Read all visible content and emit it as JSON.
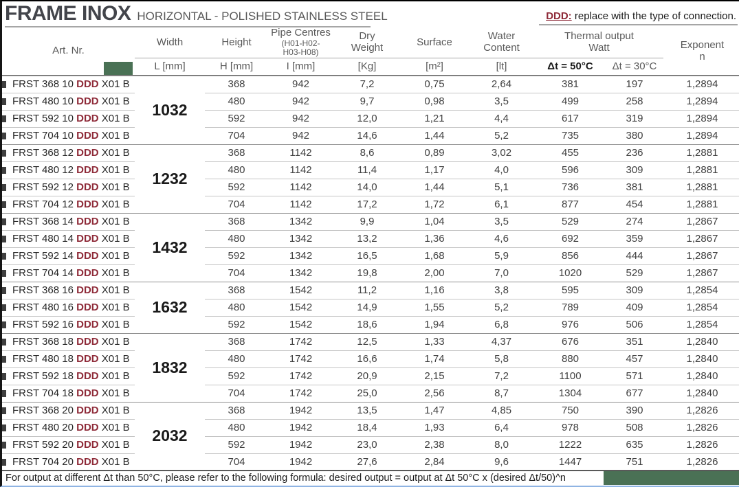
{
  "header": {
    "title": "FRAME INOX",
    "subtitle": "HORIZONTAL - POLISHED STAINLESS STEEL",
    "note_prefix": "DDD:",
    "note_text": " replace with the type of connection."
  },
  "colors": {
    "ddd_accent_red": "#8e2a38",
    "green_bar": "#4a7155",
    "title_gray": "#43454b"
  },
  "table": {
    "ddd_token": "DDD",
    "headers": {
      "art_nr": "Art. Nr.",
      "width": "Width",
      "height": "Height",
      "pipe": "Pipe Centres",
      "pipe_sub": "(H01-H02-H03-H08)",
      "dry_weight": "Dry Weight",
      "surface": "Surface",
      "water": "Water Content",
      "thermal": "Thermal output Watt",
      "exponent": "Exponent",
      "exponent_sub": "n"
    },
    "units": {
      "l": "L [mm]",
      "h": "H [mm]",
      "i": "I [mm]",
      "kg": "[Kg]",
      "m2": "[m²]",
      "lt": "[lt]",
      "dt50": "Δt = 50°C",
      "dt30": "Δt = 30°C"
    },
    "groups": [
      {
        "width_l": "1032",
        "rows": [
          {
            "art_prefix": "FRST 368 10",
            "art_suffix": "X01 B",
            "h": "368",
            "i": "942",
            "kg": "7,2",
            "m2": "0,75",
            "lt": "2,64",
            "w50": "381",
            "w30": "197",
            "n": "1,2894"
          },
          {
            "art_prefix": "FRST 480 10",
            "art_suffix": "X01 B",
            "h": "480",
            "i": "942",
            "kg": "9,7",
            "m2": "0,98",
            "lt": "3,5",
            "w50": "499",
            "w30": "258",
            "n": "1,2894"
          },
          {
            "art_prefix": "FRST 592 10",
            "art_suffix": "X01 B",
            "h": "592",
            "i": "942",
            "kg": "12,0",
            "m2": "1,21",
            "lt": "4,4",
            "w50": "617",
            "w30": "319",
            "n": "1,2894"
          },
          {
            "art_prefix": "FRST 704 10",
            "art_suffix": "X01 B",
            "h": "704",
            "i": "942",
            "kg": "14,6",
            "m2": "1,44",
            "lt": "5,2",
            "w50": "735",
            "w30": "380",
            "n": "1,2894"
          }
        ]
      },
      {
        "width_l": "1232",
        "rows": [
          {
            "art_prefix": "FRST 368 12",
            "art_suffix": "X01 B",
            "h": "368",
            "i": "1142",
            "kg": "8,6",
            "m2": "0,89",
            "lt": "3,02",
            "w50": "455",
            "w30": "236",
            "n": "1,2881"
          },
          {
            "art_prefix": "FRST 480 12",
            "art_suffix": "X01 B",
            "h": "480",
            "i": "1142",
            "kg": "11,4",
            "m2": "1,17",
            "lt": "4,0",
            "w50": "596",
            "w30": "309",
            "n": "1,2881"
          },
          {
            "art_prefix": "FRST 592 12",
            "art_suffix": "X01 B",
            "h": "592",
            "i": "1142",
            "kg": "14,0",
            "m2": "1,44",
            "lt": "5,1",
            "w50": "736",
            "w30": "381",
            "n": "1,2881"
          },
          {
            "art_prefix": "FRST 704 12",
            "art_suffix": "X01 B",
            "h": "704",
            "i": "1142",
            "kg": "17,2",
            "m2": "1,72",
            "lt": "6,1",
            "w50": "877",
            "w30": "454",
            "n": "1,2881"
          }
        ]
      },
      {
        "width_l": "1432",
        "rows": [
          {
            "art_prefix": "FRST 368 14",
            "art_suffix": "X01 B",
            "h": "368",
            "i": "1342",
            "kg": "9,9",
            "m2": "1,04",
            "lt": "3,5",
            "w50": "529",
            "w30": "274",
            "n": "1,2867"
          },
          {
            "art_prefix": "FRST 480 14",
            "art_suffix": "X01 B",
            "h": "480",
            "i": "1342",
            "kg": "13,2",
            "m2": "1,36",
            "lt": "4,6",
            "w50": "692",
            "w30": "359",
            "n": "1,2867"
          },
          {
            "art_prefix": "FRST 592 14",
            "art_suffix": "X01 B",
            "h": "592",
            "i": "1342",
            "kg": "16,5",
            "m2": "1,68",
            "lt": "5,9",
            "w50": "856",
            "w30": "444",
            "n": "1,2867"
          },
          {
            "art_prefix": "FRST 704 14",
            "art_suffix": "X01 B",
            "h": "704",
            "i": "1342",
            "kg": "19,8",
            "m2": "2,00",
            "lt": "7,0",
            "w50": "1020",
            "w30": "529",
            "n": "1,2867"
          }
        ]
      },
      {
        "width_l": "1632",
        "rows": [
          {
            "art_prefix": "FRST 368 16",
            "art_suffix": "X01 B",
            "h": "368",
            "i": "1542",
            "kg": "11,2",
            "m2": "1,16",
            "lt": "3,8",
            "w50": "595",
            "w30": "309",
            "n": "1,2854"
          },
          {
            "art_prefix": "FRST 480 16",
            "art_suffix": "X01 B",
            "h": "480",
            "i": "1542",
            "kg": "14,9",
            "m2": "1,55",
            "lt": "5,2",
            "w50": "789",
            "w30": "409",
            "n": "1,2854"
          },
          {
            "art_prefix": "FRST 592 16",
            "art_suffix": "X01 B",
            "h": "592",
            "i": "1542",
            "kg": "18,6",
            "m2": "1,94",
            "lt": "6,8",
            "w50": "976",
            "w30": "506",
            "n": "1,2854"
          }
        ]
      },
      {
        "width_l": "1832",
        "rows": [
          {
            "art_prefix": "FRST 368 18",
            "art_suffix": "X01 B",
            "h": "368",
            "i": "1742",
            "kg": "12,5",
            "m2": "1,33",
            "lt": "4,37",
            "w50": "676",
            "w30": "351",
            "n": "1,2840"
          },
          {
            "art_prefix": "FRST 480 18",
            "art_suffix": "X01 B",
            "h": "480",
            "i": "1742",
            "kg": "16,6",
            "m2": "1,74",
            "lt": "5,8",
            "w50": "880",
            "w30": "457",
            "n": "1,2840"
          },
          {
            "art_prefix": "FRST 592 18",
            "art_suffix": "X01 B",
            "h": "592",
            "i": "1742",
            "kg": "20,9",
            "m2": "2,15",
            "lt": "7,2",
            "w50": "1100",
            "w30": "571",
            "n": "1,2840"
          },
          {
            "art_prefix": "FRST 704 18",
            "art_suffix": "X01 B",
            "h": "704",
            "i": "1742",
            "kg": "25,0",
            "m2": "2,56",
            "lt": "8,7",
            "w50": "1304",
            "w30": "677",
            "n": "1,2840"
          }
        ]
      },
      {
        "width_l": "2032",
        "rows": [
          {
            "art_prefix": "FRST 368 20",
            "art_suffix": "X01 B",
            "h": "368",
            "i": "1942",
            "kg": "13,5",
            "m2": "1,47",
            "lt": "4,85",
            "w50": "750",
            "w30": "390",
            "n": "1,2826"
          },
          {
            "art_prefix": "FRST 480 20",
            "art_suffix": "X01 B",
            "h": "480",
            "i": "1942",
            "kg": "18,4",
            "m2": "1,93",
            "lt": "6,4",
            "w50": "978",
            "w30": "508",
            "n": "1,2826"
          },
          {
            "art_prefix": "FRST 592 20",
            "art_suffix": "X01 B",
            "h": "592",
            "i": "1942",
            "kg": "23,0",
            "m2": "2,38",
            "lt": "8,0",
            "w50": "1222",
            "w30": "635",
            "n": "1,2826"
          },
          {
            "art_prefix": "FRST 704 20",
            "art_suffix": "X01 B",
            "h": "704",
            "i": "1942",
            "kg": "27,6",
            "m2": "2,84",
            "lt": "9,6",
            "w50": "1447",
            "w30": "751",
            "n": "1,2826"
          }
        ]
      }
    ]
  },
  "footer": {
    "formula": "For output at different Δt than 50°C, please refer to the following formula: desired output = output at Δt 50°C x (desired Δt/50)^n"
  }
}
